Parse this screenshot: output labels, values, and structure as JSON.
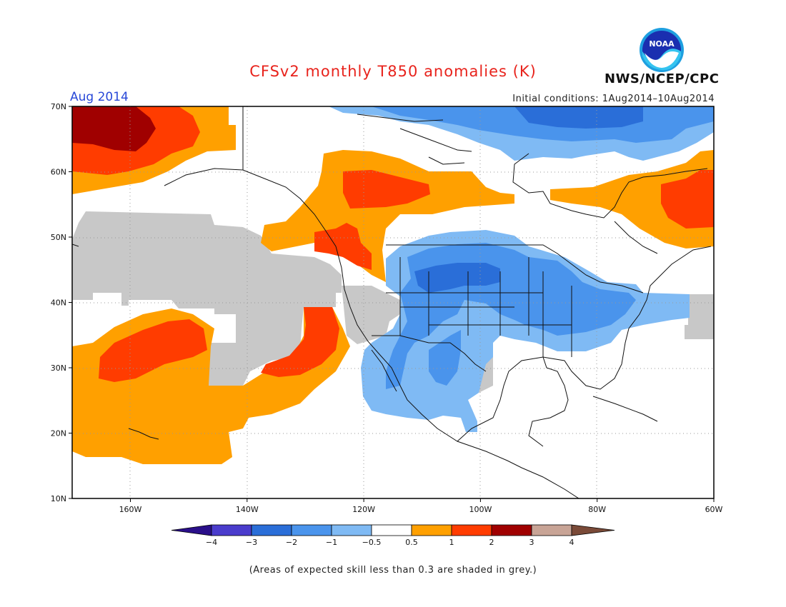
{
  "header": {
    "title": "CFSv2 monthly T850 anomalies (K)",
    "period": "Aug 2014",
    "initial_conditions": "Initial conditions: 1Aug2014–10Aug2014",
    "agency": "NWS/NCEP/CPC",
    "logo_text": "NOAA"
  },
  "axes": {
    "lat_labels": [
      "70N",
      "60N",
      "50N",
      "40N",
      "30N",
      "20N",
      "10N"
    ],
    "lon_labels": [
      "160W",
      "140W",
      "120W",
      "100W",
      "80W",
      "60W"
    ]
  },
  "colorbar": {
    "labels": [
      "−4",
      "−3",
      "−2",
      "−1",
      "−0.5",
      "0.5",
      "1",
      "2",
      "3",
      "4"
    ],
    "colors": [
      "#2a0f8a",
      "#4a3ccc",
      "#2a6ed8",
      "#4a94ec",
      "#7fbaf4",
      "#ffffff",
      "#ffa000",
      "#ff3c00",
      "#a00000",
      "#c8a496",
      "#7a4a38"
    ]
  },
  "footnote": "(Areas of expected skill less than 0.3 are shaded in grey.)"
}
